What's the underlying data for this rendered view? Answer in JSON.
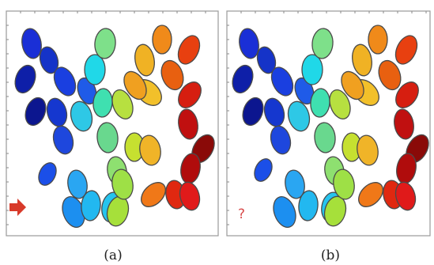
{
  "panels": [
    {
      "id": "a",
      "caption": "(a)",
      "marker": "arrow",
      "cells": [
        {
          "c": "#1a2fd6",
          "r": 12,
          "ry": 19
        },
        {
          "c": "#1533c8",
          "r": 11,
          "ry": 17
        },
        {
          "c": "#0e1fa8",
          "r": 12,
          "ry": 18
        },
        {
          "c": "#1a3fe0",
          "r": 12,
          "ry": 19
        },
        {
          "c": "#0c168f",
          "r": 12,
          "ry": 18
        },
        {
          "c": "#1f5be8",
          "r": 11,
          "ry": 17
        },
        {
          "c": "#1537cf",
          "r": 12,
          "ry": 18
        },
        {
          "c": "#1b4fe8",
          "r": 10,
          "ry": 15
        },
        {
          "c": "#1e47dd",
          "r": 12,
          "ry": 18
        },
        {
          "c": "#2aa6f2",
          "r": 12,
          "ry": 18
        },
        {
          "c": "#1c8ff0",
          "r": 13,
          "ry": 20
        },
        {
          "c": "#22b8f0",
          "r": 12,
          "ry": 19
        },
        {
          "c": "#26c4ee",
          "r": 13,
          "ry": 19
        },
        {
          "c": "#20d8e8",
          "r": 13,
          "ry": 19
        },
        {
          "c": "#2ec8e6",
          "r": 13,
          "ry": 19
        },
        {
          "c": "#7ee08a",
          "r": 13,
          "ry": 19
        },
        {
          "c": "#3fe0b0",
          "r": 12,
          "ry": 18
        },
        {
          "c": "#8ee070",
          "r": 12,
          "ry": 18
        },
        {
          "c": "#69d88e",
          "r": 13,
          "ry": 19
        },
        {
          "c": "#b7e040",
          "r": 12,
          "ry": 19
        },
        {
          "c": "#a6e03a",
          "r": 13,
          "ry": 19
        },
        {
          "c": "#9ee046",
          "r": 13,
          "ry": 19
        },
        {
          "c": "#c6e030",
          "r": 12,
          "ry": 18
        },
        {
          "c": "#f0b224",
          "r": 12,
          "ry": 20
        },
        {
          "c": "#f2c02a",
          "r": 13,
          "ry": 19
        },
        {
          "c": "#f0a020",
          "r": 12,
          "ry": 19
        },
        {
          "c": "#f0b428",
          "r": 13,
          "ry": 19
        },
        {
          "c": "#f08a1a",
          "r": 12,
          "ry": 18
        },
        {
          "c": "#f07818",
          "r": 12,
          "ry": 18
        },
        {
          "c": "#e86010",
          "r": 13,
          "ry": 19
        },
        {
          "c": "#e84010",
          "r": 12,
          "ry": 19
        },
        {
          "c": "#d61e10",
          "r": 12,
          "ry": 18
        },
        {
          "c": "#c01010",
          "r": 12,
          "ry": 19
        },
        {
          "c": "#e02810",
          "r": 12,
          "ry": 18
        },
        {
          "c": "#8a0a08",
          "r": 12,
          "ry": 19
        },
        {
          "c": "#b00c0c",
          "r": 12,
          "ry": 19
        },
        {
          "c": "#e01a1a",
          "r": 12,
          "ry": 18
        }
      ]
    },
    {
      "id": "b",
      "caption": "(b)",
      "marker": "?",
      "cells": [
        {
          "c": "#1a2fd6",
          "r": 12,
          "ry": 19
        },
        {
          "c": "#1533c8",
          "r": 11,
          "ry": 17
        },
        {
          "c": "#0e1fa8",
          "r": 12,
          "ry": 18
        },
        {
          "c": "#1a3fe0",
          "r": 12,
          "ry": 19
        },
        {
          "c": "#0c168f",
          "r": 12,
          "ry": 18
        },
        {
          "c": "#1f5be8",
          "r": 11,
          "ry": 17
        },
        {
          "c": "#1537cf",
          "r": 12,
          "ry": 18
        },
        {
          "c": "#1b4fe8",
          "r": 10,
          "ry": 15
        },
        {
          "c": "#1e47dd",
          "r": 12,
          "ry": 18
        },
        {
          "c": "#2aa6f2",
          "r": 12,
          "ry": 18
        },
        {
          "c": "#1c8ff0",
          "r": 13,
          "ry": 20
        },
        {
          "c": "#22b8f0",
          "r": 12,
          "ry": 19
        },
        {
          "c": "#26c4ee",
          "r": 13,
          "ry": 19
        },
        {
          "c": "#20d8e8",
          "r": 13,
          "ry": 19
        },
        {
          "c": "#2ec8e6",
          "r": 13,
          "ry": 19
        },
        {
          "c": "#7ee08a",
          "r": 13,
          "ry": 19
        },
        {
          "c": "#3fe0b0",
          "r": 12,
          "ry": 18
        },
        {
          "c": "#8ee070",
          "r": 12,
          "ry": 18
        },
        {
          "c": "#69d88e",
          "r": 13,
          "ry": 19
        },
        {
          "c": "#b7e040",
          "r": 12,
          "ry": 19
        },
        {
          "c": "#a6e03a",
          "r": 13,
          "ry": 19
        },
        {
          "c": "#9ee046",
          "r": 13,
          "ry": 19
        },
        {
          "c": "#c6e030",
          "r": 12,
          "ry": 18
        },
        {
          "c": "#f0b224",
          "r": 12,
          "ry": 20
        },
        {
          "c": "#f2c02a",
          "r": 13,
          "ry": 19
        },
        {
          "c": "#f0a020",
          "r": 12,
          "ry": 19
        },
        {
          "c": "#f0b428",
          "r": 13,
          "ry": 19
        },
        {
          "c": "#f08a1a",
          "r": 12,
          "ry": 18
        },
        {
          "c": "#f07818",
          "r": 12,
          "ry": 18
        },
        {
          "c": "#e86010",
          "r": 13,
          "ry": 19
        },
        {
          "c": "#e84010",
          "r": 12,
          "ry": 19
        },
        {
          "c": "#d61e10",
          "r": 12,
          "ry": 18
        },
        {
          "c": "#c01010",
          "r": 12,
          "ry": 19
        },
        {
          "c": "#e02810",
          "r": 12,
          "ry": 18
        },
        {
          "c": "#8a0a08",
          "r": 12,
          "ry": 19
        },
        {
          "c": "#b00c0c",
          "r": 12,
          "ry": 19
        },
        {
          "c": "#e01a1a",
          "r": 12,
          "ry": 18
        }
      ]
    }
  ],
  "colors": {
    "frame": "#9a9a9a",
    "arrow": "#d83a2a",
    "question": "#d84a4a"
  }
}
